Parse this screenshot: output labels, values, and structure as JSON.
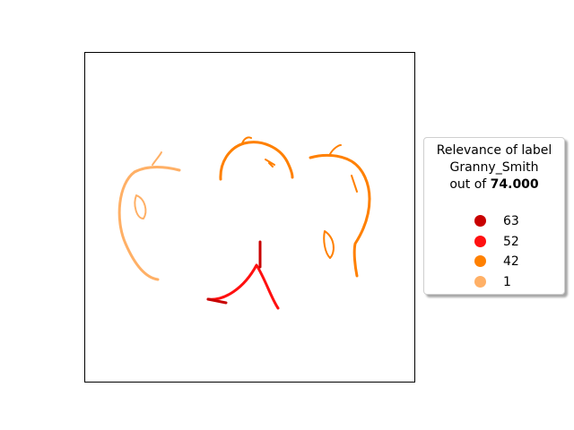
{
  "chart_data": {
    "type": "heatmap",
    "title": "",
    "xlabel": "",
    "ylabel": "",
    "grid": false,
    "ticks": false,
    "legend": {
      "placement": "right",
      "title_line1": "Relevance of label",
      "title_line2": "Granny_Smith",
      "title_line3_prefix": "out of ",
      "title_max": "74.000",
      "entries": [
        {
          "label": "63",
          "value": 63,
          "color": "#c80000"
        },
        {
          "label": "52",
          "value": 52,
          "color": "#ff1010"
        },
        {
          "label": "42",
          "value": 42,
          "color": "#ff8000"
        },
        {
          "label": "1",
          "value": 1,
          "color": "#ffb066"
        }
      ]
    },
    "max_relevance": 74.0
  }
}
